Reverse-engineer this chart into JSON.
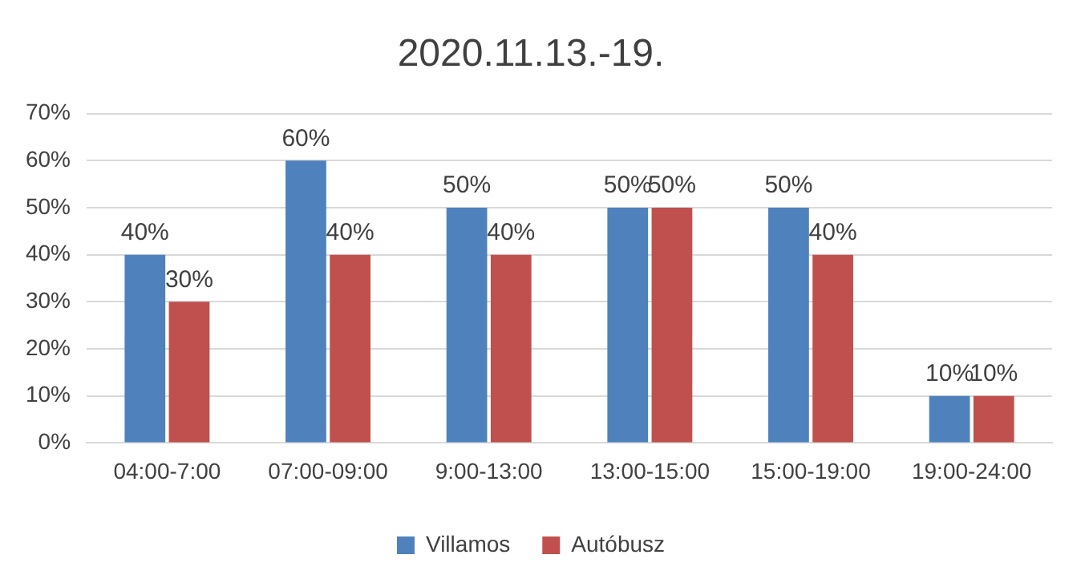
{
  "chart_data": {
    "type": "bar",
    "title": "2020.11.13.-19.",
    "categories": [
      "04:00-7:00",
      "07:00-09:00",
      "9:00-13:00",
      "13:00-15:00",
      "15:00-19:00",
      "19:00-24:00"
    ],
    "series": [
      {
        "name": "Villamos",
        "color": "#4f81bd",
        "values": [
          40,
          60,
          50,
          50,
          50,
          10
        ],
        "value_labels": [
          "40%",
          "60%",
          "50%",
          "50%",
          "50%",
          "10%"
        ]
      },
      {
        "name": "Autóbusz",
        "color": "#c0504d",
        "values": [
          30,
          40,
          40,
          50,
          40,
          10
        ],
        "value_labels": [
          "30%",
          "40%",
          "40%",
          "50%",
          "40%",
          "10%"
        ]
      }
    ],
    "ylim": [
      0,
      70
    ],
    "yticks": [
      {
        "value": 0,
        "label": "0%"
      },
      {
        "value": 10,
        "label": "10%"
      },
      {
        "value": 20,
        "label": "20%"
      },
      {
        "value": 30,
        "label": "30%"
      },
      {
        "value": 40,
        "label": "40%"
      },
      {
        "value": 50,
        "label": "50%"
      },
      {
        "value": 60,
        "label": "60%"
      },
      {
        "value": 70,
        "label": "70%"
      }
    ],
    "grid": "y",
    "legend": "bottom"
  }
}
